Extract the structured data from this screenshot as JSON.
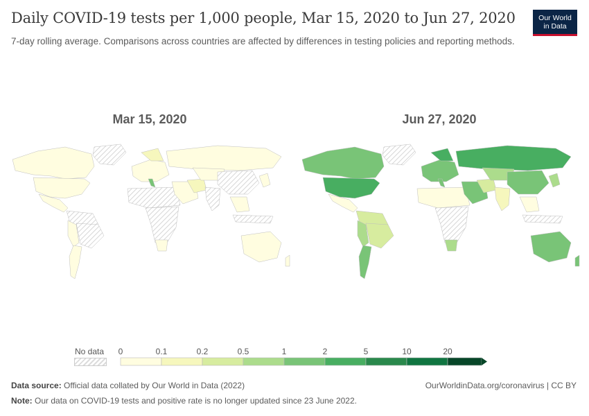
{
  "title": "Daily COVID-19 tests per 1,000 people, Mar 15, 2020 to Jun 27, 2020",
  "subtitle": "7-day rolling average. Comparisons across countries are affected by differences in testing policies and reporting methods.",
  "logo": {
    "line1": "Our World",
    "line2": "in Data"
  },
  "maps": [
    {
      "date": "Mar 15, 2020"
    },
    {
      "date": "Jun 27, 2020"
    }
  ],
  "legend": {
    "no_data_label": "No data",
    "ticks": [
      "0",
      "0.1",
      "0.2",
      "0.5",
      "1",
      "2",
      "5",
      "10",
      "20"
    ],
    "colors": [
      "#fffde0",
      "#f6f7bd",
      "#d7ec9f",
      "#acdc8c",
      "#79c477",
      "#48ae61",
      "#2a894c",
      "#107541",
      "#074628"
    ]
  },
  "footer": {
    "source_label": "Data source:",
    "source_text": "Official data collated by Our World in Data (2022)",
    "note_label": "Note:",
    "note_text": "Our data on COVID-19 tests and positive rate is no longer updated since 23 June 2022.",
    "link": "OurWorldinData.org/coronavirus | CC BY"
  }
}
